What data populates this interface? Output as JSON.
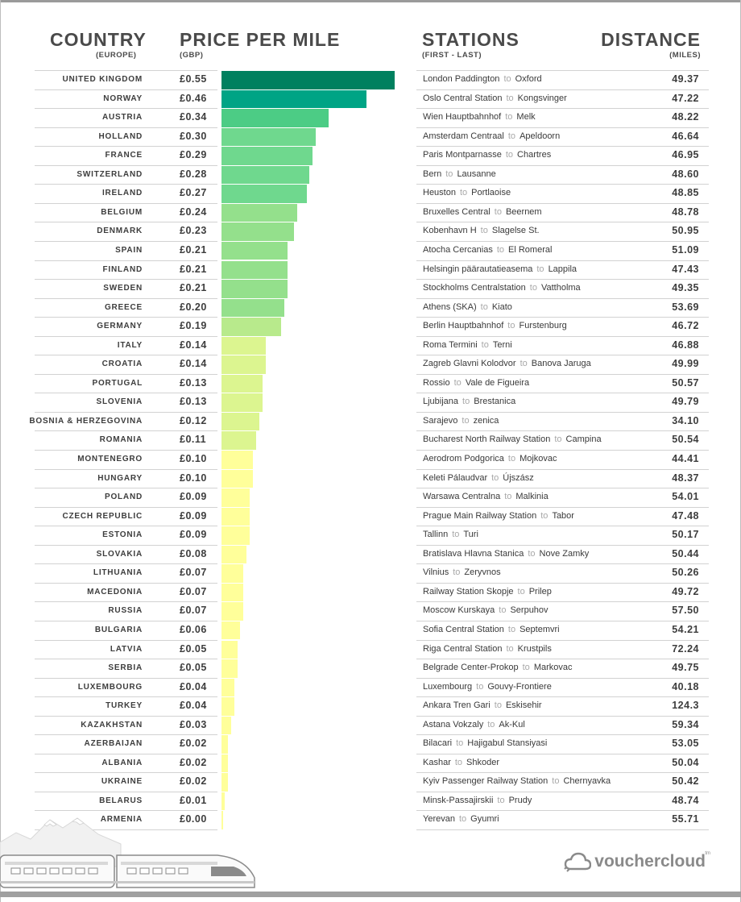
{
  "headers": {
    "country": "COUNTRY",
    "country_sub": "(EUROPE)",
    "price": "PRICE PER MILE",
    "price_sub": "(GBP)",
    "stations": "STATIONS",
    "stations_sub": "(FIRST - LAST)",
    "distance": "DISTANCE",
    "distance_sub": "(MILES)"
  },
  "connector": "to",
  "brand": {
    "name": "vouchercloud",
    "tm": "tm"
  },
  "colors": {
    "dark_green": "#00805f",
    "teal": "#00a485",
    "green": "#4ccc85",
    "light_green": "#6fd88e",
    "pale_green": "#94e08c",
    "lime": "#b8ea8c",
    "yellow_green": "#dcf590",
    "yellow": "#ffff9a"
  },
  "chart_data": {
    "type": "bar",
    "title": "",
    "xlabel": "PRICE PER MILE",
    "ylabel": "COUNTRY",
    "xlim": [
      0,
      0.55
    ],
    "categories": [
      "UNITED KINGDOM",
      "NORWAY",
      "AUSTRIA",
      "HOLLAND",
      "FRANCE",
      "SWITZERLAND",
      "IRELAND",
      "BELGIUM",
      "DENMARK",
      "SPAIN",
      "FINLAND",
      "SWEDEN",
      "GREECE",
      "GERMANY",
      "ITALY",
      "CROATIA",
      "PORTUGAL",
      "SLOVENIA",
      "BOSNIA & HERZEGOVINA",
      "ROMANIA",
      "MONTENEGRO",
      "HUNGARY",
      "POLAND",
      "CZECH REPUBLIC",
      "ESTONIA",
      "SLOVAKIA",
      "LITHUANIA",
      "MACEDONIA",
      "RUSSIA",
      "BULGARIA",
      "LATVIA",
      "SERBIA",
      "LUXEMBOURG",
      "TURKEY",
      "KAZAKHSTAN",
      "AZERBAIJAN",
      "ALBANIA",
      "UKRAINE",
      "BELARUS",
      "ARMENIA"
    ],
    "rows": [
      {
        "country": "UNITED KINGDOM",
        "price": 0.55,
        "price_label": "£0.55",
        "from": "London Paddington",
        "to": "Oxford",
        "distance": "49.37"
      },
      {
        "country": "NORWAY",
        "price": 0.46,
        "price_label": "£0.46",
        "from": "Oslo Central Station",
        "to": "Kongsvinger",
        "distance": "47.22"
      },
      {
        "country": "AUSTRIA",
        "price": 0.34,
        "price_label": "£0.34",
        "from": "Wien Hauptbahnhof",
        "to": "Melk",
        "distance": "48.22"
      },
      {
        "country": "HOLLAND",
        "price": 0.3,
        "price_label": "£0.30",
        "from": "Amsterdam Centraal",
        "to": "Apeldoorn",
        "distance": "46.64"
      },
      {
        "country": "FRANCE",
        "price": 0.29,
        "price_label": "£0.29",
        "from": "Paris Montparnasse",
        "to": "Chartres",
        "distance": "46.95"
      },
      {
        "country": "SWITZERLAND",
        "price": 0.28,
        "price_label": "£0.28",
        "from": "Bern",
        "to": "Lausanne",
        "distance": "48.60"
      },
      {
        "country": "IRELAND",
        "price": 0.27,
        "price_label": "£0.27",
        "from": "Heuston",
        "to": "Portlaoise",
        "distance": "48.85"
      },
      {
        "country": "BELGIUM",
        "price": 0.24,
        "price_label": "£0.24",
        "from": "Bruxelles Central",
        "to": "Beernem",
        "distance": "48.78"
      },
      {
        "country": "DENMARK",
        "price": 0.23,
        "price_label": "£0.23",
        "from": "Kobenhavn H",
        "to": "Slagelse St.",
        "distance": "50.95"
      },
      {
        "country": "SPAIN",
        "price": 0.21,
        "price_label": "£0.21",
        "from": "Atocha Cercanias",
        "to": "El Romeral",
        "distance": "51.09"
      },
      {
        "country": "FINLAND",
        "price": 0.21,
        "price_label": "£0.21",
        "from": "Helsingin päärautatieasema",
        "to": "Lappila",
        "distance": "47.43"
      },
      {
        "country": "SWEDEN",
        "price": 0.21,
        "price_label": "£0.21",
        "from": "Stockholms Centralstation",
        "to": "Vattholma",
        "distance": "49.35"
      },
      {
        "country": "GREECE",
        "price": 0.2,
        "price_label": "£0.20",
        "from": "Athens (SKA)",
        "to": "Kiato",
        "distance": "53.69"
      },
      {
        "country": "GERMANY",
        "price": 0.19,
        "price_label": "£0.19",
        "from": "Berlin Hauptbahnhof",
        "to": "Furstenburg",
        "distance": "46.72"
      },
      {
        "country": "ITALY",
        "price": 0.14,
        "price_label": "£0.14",
        "from": "Roma Termini",
        "to": "Terni",
        "distance": "46.88"
      },
      {
        "country": "CROATIA",
        "price": 0.14,
        "price_label": "£0.14",
        "from": "Zagreb Glavni Kolodvor",
        "to": "Banova Jaruga",
        "distance": "49.99"
      },
      {
        "country": "PORTUGAL",
        "price": 0.13,
        "price_label": "£0.13",
        "from": "Rossio",
        "to": "Vale de Figueira",
        "distance": "50.57"
      },
      {
        "country": "SLOVENIA",
        "price": 0.13,
        "price_label": "£0.13",
        "from": "Ljubijana",
        "to": "Brestanica",
        "distance": "49.79"
      },
      {
        "country": "BOSNIA & HERZEGOVINA",
        "price": 0.12,
        "price_label": "£0.12",
        "from": "Sarajevo",
        "to": "zenica",
        "distance": "34.10"
      },
      {
        "country": "ROMANIA",
        "price": 0.11,
        "price_label": "£0.11",
        "from": "Bucharest North Railway Station",
        "to": "Campina",
        "distance": "50.54"
      },
      {
        "country": "MONTENEGRO",
        "price": 0.1,
        "price_label": "£0.10",
        "from": "Aerodrom Podgorica",
        "to": "Mojkovac",
        "distance": "44.41"
      },
      {
        "country": "HUNGARY",
        "price": 0.1,
        "price_label": "£0.10",
        "from": "Keleti Pálaudvar",
        "to": "Újszász",
        "distance": "48.37"
      },
      {
        "country": "POLAND",
        "price": 0.09,
        "price_label": "£0.09",
        "from": "Warsawa Centralna",
        "to": "Malkinia",
        "distance": "54.01"
      },
      {
        "country": "CZECH REPUBLIC",
        "price": 0.09,
        "price_label": "£0.09",
        "from": "Prague Main Railway Station",
        "to": "Tabor",
        "distance": "47.48"
      },
      {
        "country": "ESTONIA",
        "price": 0.09,
        "price_label": "£0.09",
        "from": "Tallinn",
        "to": "Turi",
        "distance": "50.17"
      },
      {
        "country": "SLOVAKIA",
        "price": 0.08,
        "price_label": "£0.08",
        "from": "Bratislava Hlavna Stanica",
        "to": "Nove Zamky",
        "distance": "50.44"
      },
      {
        "country": "LITHUANIA",
        "price": 0.07,
        "price_label": "£0.07",
        "from": "Vilnius",
        "to": "Zeryvnos",
        "distance": "50.26"
      },
      {
        "country": "MACEDONIA",
        "price": 0.07,
        "price_label": "£0.07",
        "from": "Railway Station Skopje",
        "to": "Prilep",
        "distance": "49.72"
      },
      {
        "country": "RUSSIA",
        "price": 0.07,
        "price_label": "£0.07",
        "from": "Moscow Kurskaya",
        "to": "Serpuhov",
        "distance": "57.50"
      },
      {
        "country": "BULGARIA",
        "price": 0.06,
        "price_label": "£0.06",
        "from": "Sofia Central Station",
        "to": "Septemvri",
        "distance": "54.21"
      },
      {
        "country": "LATVIA",
        "price": 0.05,
        "price_label": "£0.05",
        "from": "Riga Central Station",
        "to": "Krustpils",
        "distance": "72.24"
      },
      {
        "country": "SERBIA",
        "price": 0.05,
        "price_label": "£0.05",
        "from": "Belgrade Center-Prokop",
        "to": "Markovac",
        "distance": "49.75"
      },
      {
        "country": "LUXEMBOURG",
        "price": 0.04,
        "price_label": "£0.04",
        "from": "Luxembourg",
        "to": "Gouvy-Frontiere",
        "distance": "40.18"
      },
      {
        "country": "TURKEY",
        "price": 0.04,
        "price_label": "£0.04",
        "from": "Ankara Tren Gari",
        "to": "Eskisehir",
        "distance": "124.3"
      },
      {
        "country": "KAZAKHSTAN",
        "price": 0.03,
        "price_label": "£0.03",
        "from": "Astana Vokzaly",
        "to": "Ak-Kul",
        "distance": "59.34"
      },
      {
        "country": "AZERBAIJAN",
        "price": 0.02,
        "price_label": "£0.02",
        "from": "Bilacari",
        "to": "Hajigabul Stansiyasi",
        "distance": "53.05"
      },
      {
        "country": "ALBANIA",
        "price": 0.02,
        "price_label": "£0.02",
        "from": "Kashar",
        "to": "Shkoder",
        "distance": "50.04"
      },
      {
        "country": "UKRAINE",
        "price": 0.02,
        "price_label": "£0.02",
        "from": "Kyiv Passenger Railway Station",
        "to": "Chernyavka",
        "distance": "50.42"
      },
      {
        "country": "BELARUS",
        "price": 0.01,
        "price_label": "£0.01",
        "from": "Minsk-Passajirskii",
        "to": "Prudy",
        "distance": "48.74"
      },
      {
        "country": "ARMENIA",
        "price": 0.0,
        "price_label": "£0.00",
        "from": "Yerevan",
        "to": "Gyumri",
        "distance": "55.71"
      }
    ]
  }
}
